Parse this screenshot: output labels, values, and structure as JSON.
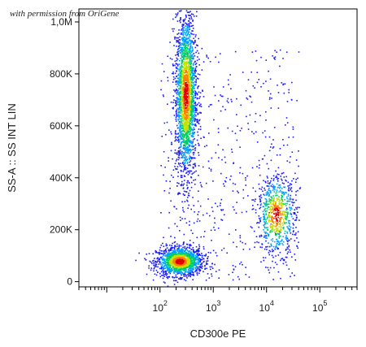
{
  "watermark": "with permission from OriGene",
  "chart_data": {
    "type": "scatter",
    "style": "flow cytometry density dot plot (blue → green → yellow → red by density)",
    "xlabel": "CD300e PE",
    "ylabel": "SS-A :: SS INT LIN",
    "x_scale": "log",
    "xlim": [
      3,
      500000
    ],
    "ylim": [
      -20000,
      1050000
    ],
    "x_ticks": [
      {
        "value": 100,
        "base": "10",
        "exp": "2"
      },
      {
        "value": 1000,
        "base": "10",
        "exp": "3"
      },
      {
        "value": 10000,
        "base": "10",
        "exp": "4"
      },
      {
        "value": 100000,
        "base": "10",
        "exp": "5"
      }
    ],
    "y_ticks": [
      {
        "value": 0,
        "label": "0"
      },
      {
        "value": 200000,
        "label": "200K"
      },
      {
        "value": 400000,
        "label": "400K"
      },
      {
        "value": 600000,
        "label": "600K"
      },
      {
        "value": 800000,
        "label": "800K"
      },
      {
        "value": 1000000,
        "label": "1,0M"
      }
    ],
    "populations": [
      {
        "x": 230,
        "y": 80000,
        "x_spread_decades": 0.22,
        "y_spread": 28000,
        "n": 1400
      },
      {
        "x": 300,
        "y": 720000,
        "x_spread_decades": 0.1,
        "y_spread": 160000,
        "n": 2200
      },
      {
        "x": 15000,
        "y": 260000,
        "x_spread_decades": 0.18,
        "y_spread": 75000,
        "n": 700
      }
    ],
    "colors": [
      "#1a1aff",
      "#00a0ff",
      "#00d060",
      "#c8e000",
      "#ff8000",
      "#e00000"
    ]
  }
}
